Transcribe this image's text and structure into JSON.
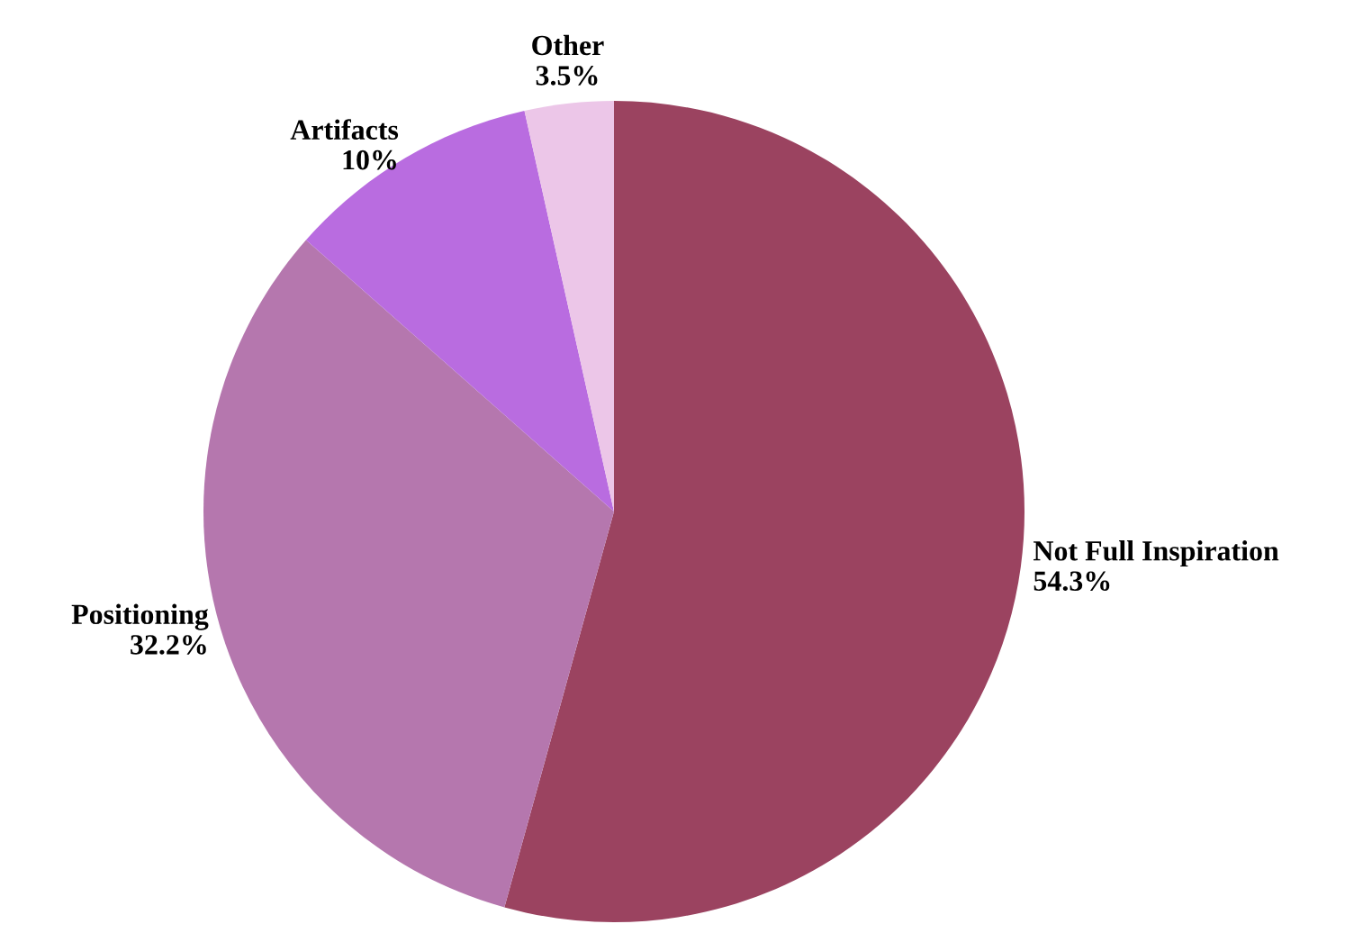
{
  "chart_data": {
    "type": "pie",
    "categories": [
      "Not Full Inspiration",
      "Positioning",
      "Artifacts",
      "Other"
    ],
    "values": [
      54.3,
      32.2,
      10,
      3.5
    ],
    "value_labels": [
      "54.3%",
      "32.2%",
      "10%",
      "3.5%"
    ],
    "colors": [
      "#9b4360",
      "#b577ae",
      "#b96ce0",
      "#ecc6e8"
    ]
  }
}
